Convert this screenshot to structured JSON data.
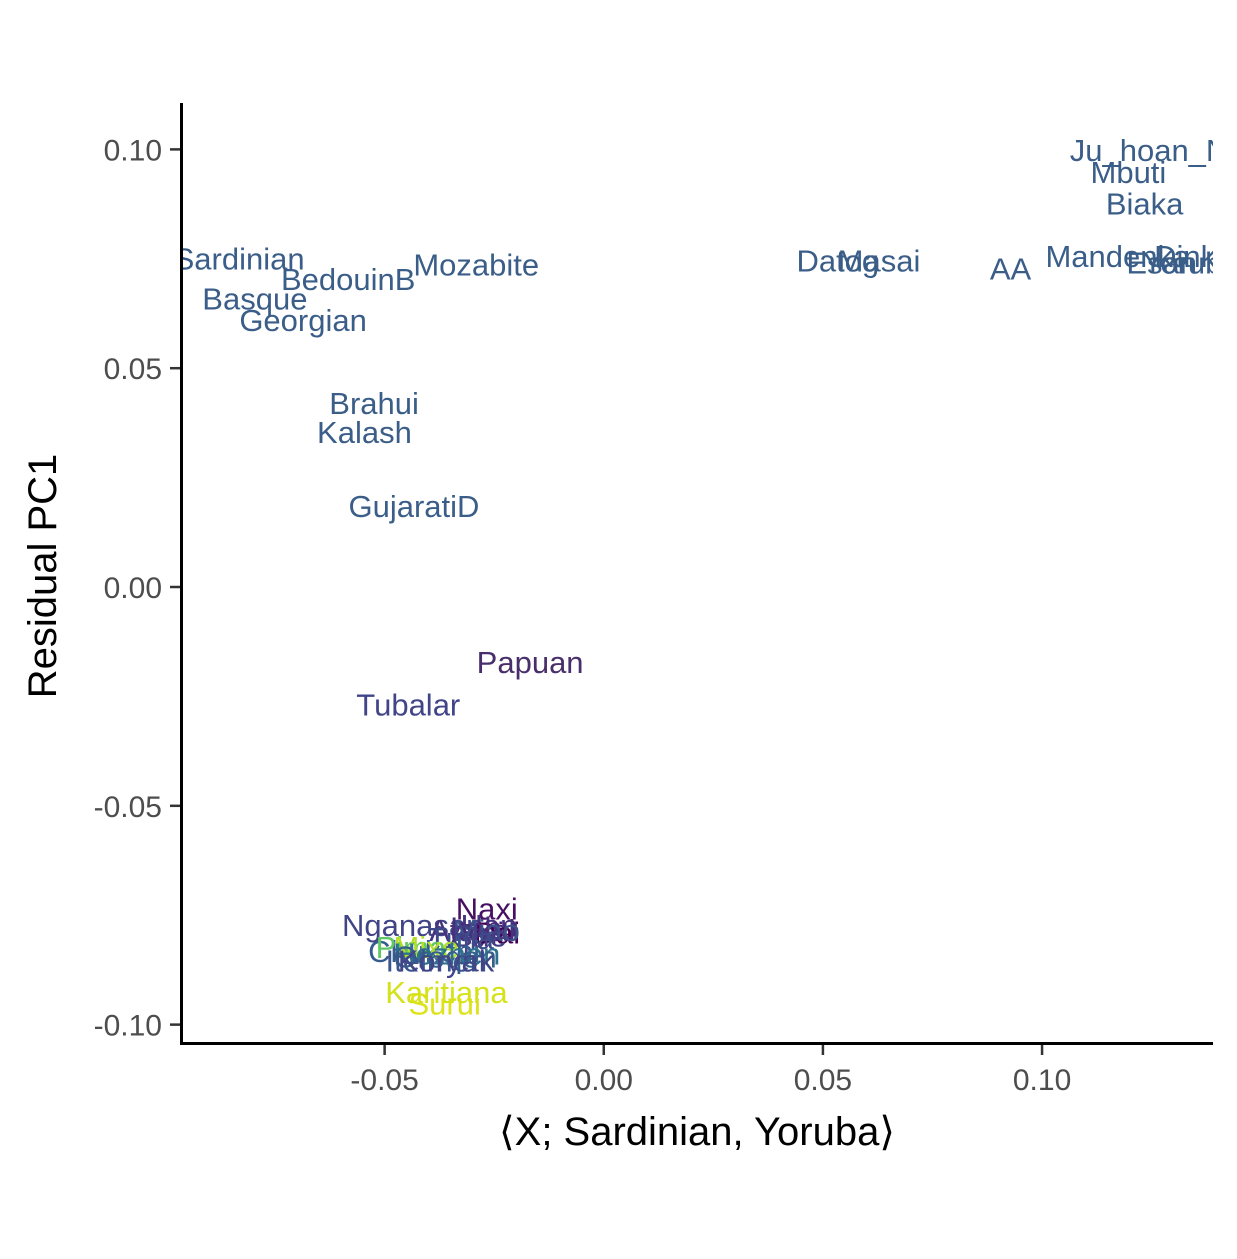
{
  "chart_data": {
    "type": "scatter",
    "title": "",
    "xlabel": "⟨X; Sardinian, Yoruba⟩",
    "ylabel": "Residual PC1",
    "xlim": [
      -0.096,
      0.139
    ],
    "ylim": [
      -0.1042,
      0.1106
    ],
    "xticks": [
      {
        "value": -0.05,
        "label": "-0.05"
      },
      {
        "value": 0.0,
        "label": "0.00"
      },
      {
        "value": 0.05,
        "label": "0.05"
      },
      {
        "value": 0.1,
        "label": "0.10"
      }
    ],
    "yticks": [
      {
        "value": 0.1,
        "label": "0.10"
      },
      {
        "value": 0.05,
        "label": "0.05"
      },
      {
        "value": 0.0,
        "label": "0.00"
      },
      {
        "value": -0.05,
        "label": "-0.05"
      },
      {
        "value": -0.1,
        "label": "-0.10"
      }
    ],
    "grid": false,
    "legend": "none",
    "points": [
      {
        "label": "Ju_hoan_North",
        "x": 0.1305,
        "y": 0.0999,
        "color": "#3b5e89"
      },
      {
        "label": "Mbuti",
        "x": 0.1197,
        "y": 0.0948,
        "color": "#3b5e89"
      },
      {
        "label": "Biaka",
        "x": 0.1234,
        "y": 0.0876,
        "color": "#3b5e89"
      },
      {
        "label": "Dinka",
        "x": 0.1346,
        "y": 0.0756,
        "color": "#3b5e89"
      },
      {
        "label": "Mandenka",
        "x": 0.1173,
        "y": 0.0756,
        "color": "#3b5e89"
      },
      {
        "label": "Yoruba",
        "x": 0.134,
        "y": 0.0742,
        "color": "#3b5e89"
      },
      {
        "label": "Esan",
        "x": 0.1273,
        "y": 0.0742,
        "color": "#3b5e89"
      },
      {
        "label": "Masai",
        "x": 0.0628,
        "y": 0.0746,
        "color": "#3b5e89"
      },
      {
        "label": "Datog",
        "x": 0.0534,
        "y": 0.0746,
        "color": "#3b5e89"
      },
      {
        "label": "AA",
        "x": 0.0928,
        "y": 0.0728,
        "color": "#3b5e89"
      },
      {
        "label": "Sardinian",
        "x": -0.0832,
        "y": 0.0751,
        "color": "#3b5e89"
      },
      {
        "label": "Mozabite",
        "x": -0.0291,
        "y": 0.0737,
        "color": "#3b5e89"
      },
      {
        "label": "BedouinB",
        "x": -0.0583,
        "y": 0.0704,
        "color": "#3b5e89"
      },
      {
        "label": "Basque",
        "x": -0.0796,
        "y": 0.0659,
        "color": "#3b5e89"
      },
      {
        "label": "Georgian",
        "x": -0.0686,
        "y": 0.061,
        "color": "#3b5e89"
      },
      {
        "label": "Brahui",
        "x": -0.0524,
        "y": 0.042,
        "color": "#3b5e89"
      },
      {
        "label": "Kalash",
        "x": -0.0546,
        "y": 0.0354,
        "color": "#3b5e89"
      },
      {
        "label": "GujaratiD",
        "x": -0.0433,
        "y": 0.0185,
        "color": "#3b5e89"
      },
      {
        "label": "Papuan",
        "x": -0.0168,
        "y": -0.0171,
        "color": "#482f6b"
      },
      {
        "label": "Tubalar",
        "x": -0.0446,
        "y": -0.0269,
        "color": "#414487"
      },
      {
        "label": "Naxi",
        "x": -0.0267,
        "y": -0.0735,
        "color": "#471063"
      },
      {
        "label": "Nganasan",
        "x": -0.0436,
        "y": -0.0772,
        "color": "#414487"
      },
      {
        "label": "Han",
        "x": -0.0262,
        "y": -0.0772,
        "color": "#46337e"
      },
      {
        "label": "Ami",
        "x": -0.0288,
        "y": -0.079,
        "color": "#482878"
      },
      {
        "label": "Atayal",
        "x": -0.03,
        "y": -0.0784,
        "color": "#46337e"
      },
      {
        "label": "Dai",
        "x": -0.0244,
        "y": -0.079,
        "color": "#440154"
      },
      {
        "label": "Lahu",
        "x": -0.0272,
        "y": -0.0778,
        "color": "#472d7b"
      },
      {
        "label": "Miao",
        "x": -0.0268,
        "y": -0.0784,
        "color": "#3b528b"
      },
      {
        "label": "She",
        "x": -0.0284,
        "y": -0.0796,
        "color": "#433e85"
      },
      {
        "label": "Tujia",
        "x": -0.0326,
        "y": -0.0802,
        "color": "#3e4989"
      },
      {
        "label": "Chukchi",
        "x": -0.041,
        "y": -0.0832,
        "color": "#365c8d"
      },
      {
        "label": "Pima",
        "x": -0.044,
        "y": -0.0823,
        "color": "#5ec962"
      },
      {
        "label": "Mixe",
        "x": -0.0405,
        "y": -0.0823,
        "color": "#b5de2b"
      },
      {
        "label": "Hezhen",
        "x": -0.0358,
        "y": -0.0838,
        "color": "#2c728e"
      },
      {
        "label": "Oroqen",
        "x": -0.0362,
        "y": -0.0844,
        "color": "#35608d"
      },
      {
        "label": "Itelmen",
        "x": -0.0382,
        "y": -0.0853,
        "color": "#3a548c"
      },
      {
        "label": "Koryak",
        "x": -0.036,
        "y": -0.0853,
        "color": "#414487"
      },
      {
        "label": "Surui",
        "x": -0.0363,
        "y": -0.0952,
        "color": "#dde318"
      },
      {
        "label": "Karitiana",
        "x": -0.0359,
        "y": -0.0926,
        "color": "#d5e21a"
      }
    ]
  }
}
